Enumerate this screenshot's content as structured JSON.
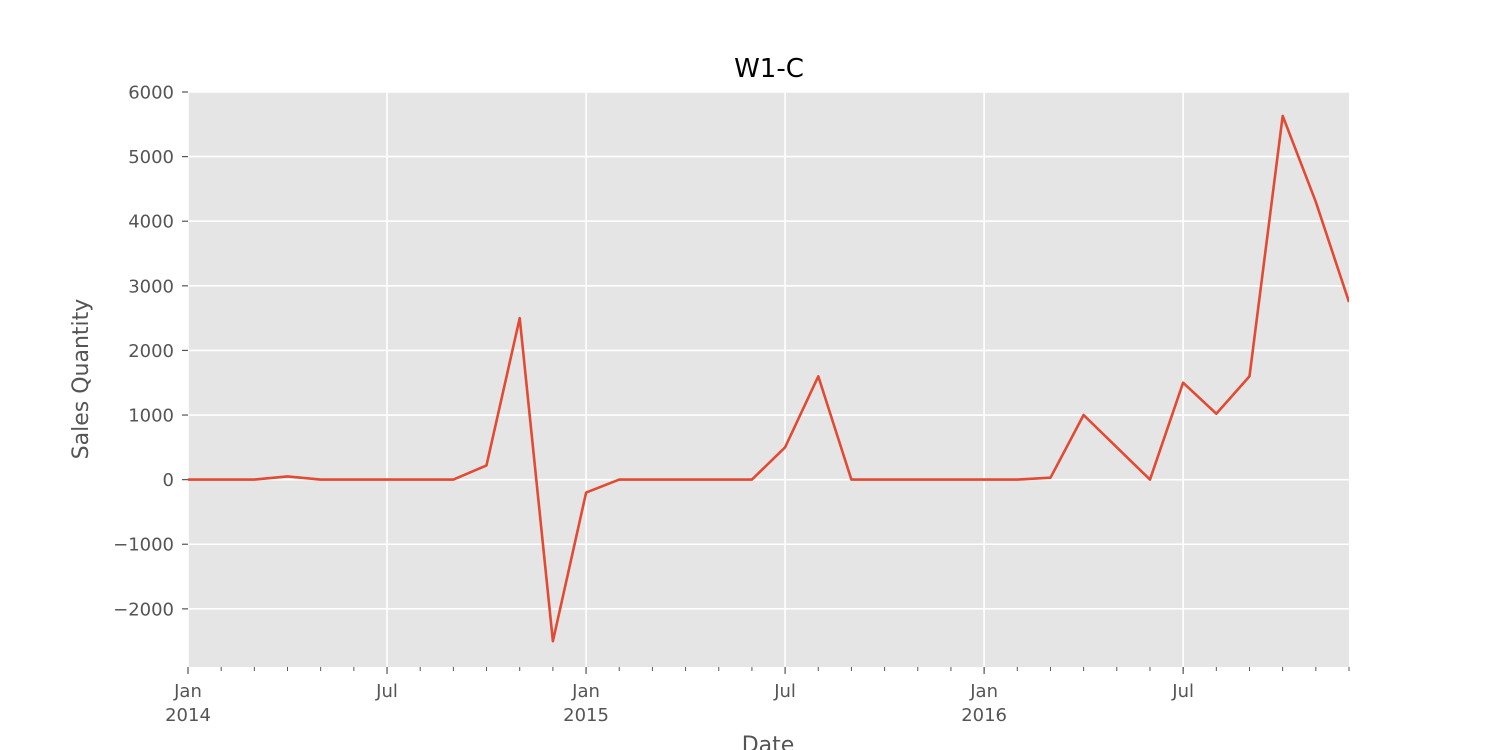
{
  "chart_data": {
    "type": "line",
    "title": "W1-C",
    "xlabel": "Date",
    "ylabel": "Sales Quantity",
    "ylim": [
      -2900,
      6000
    ],
    "xlim": [
      "2014-01",
      "2016-12"
    ],
    "grid": true,
    "background_color": "#e5e5e5",
    "grid_color": "#ffffff",
    "line_color": "#e24a33",
    "yticks": [
      {
        "value": 6000,
        "label": "6000"
      },
      {
        "value": 5000,
        "label": "5000"
      },
      {
        "value": 4000,
        "label": "4000"
      },
      {
        "value": 3000,
        "label": "3000"
      },
      {
        "value": 2000,
        "label": "2000"
      },
      {
        "value": 1000,
        "label": "1000"
      },
      {
        "value": 0,
        "label": "0"
      },
      {
        "value": -1000,
        "label": "−1000"
      },
      {
        "value": -2000,
        "label": "−2000"
      }
    ],
    "xticks_major": [
      {
        "date": "2014-01",
        "line1": "Jan",
        "line2": "2014"
      },
      {
        "date": "2014-07",
        "line1": "Jul",
        "line2": ""
      },
      {
        "date": "2015-01",
        "line1": "Jan",
        "line2": "2015"
      },
      {
        "date": "2015-07",
        "line1": "Jul",
        "line2": ""
      },
      {
        "date": "2016-01",
        "line1": "Jan",
        "line2": "2016"
      },
      {
        "date": "2016-07",
        "line1": "Jul",
        "line2": ""
      }
    ],
    "series": [
      {
        "x": [
          "2014-01",
          "2014-02",
          "2014-03",
          "2014-04",
          "2014-05",
          "2014-06",
          "2014-07",
          "2014-08",
          "2014-09",
          "2014-10",
          "2014-11",
          "2014-12",
          "2015-01",
          "2015-02",
          "2015-03",
          "2015-04",
          "2015-05",
          "2015-06",
          "2015-07",
          "2015-08",
          "2015-09",
          "2015-10",
          "2015-11",
          "2015-12",
          "2016-01",
          "2016-02",
          "2016-03",
          "2016-04",
          "2016-05",
          "2016-06",
          "2016-07",
          "2016-08",
          "2016-09",
          "2016-10",
          "2016-11",
          "2016-12"
        ],
        "values": [
          0,
          0,
          0,
          50,
          0,
          0,
          0,
          0,
          0,
          220,
          2500,
          -2500,
          -200,
          0,
          0,
          0,
          0,
          0,
          500,
          1600,
          0,
          0,
          0,
          0,
          0,
          0,
          30,
          1000,
          500,
          0,
          1500,
          1020,
          1600,
          5630,
          4300,
          2750
        ]
      }
    ]
  }
}
